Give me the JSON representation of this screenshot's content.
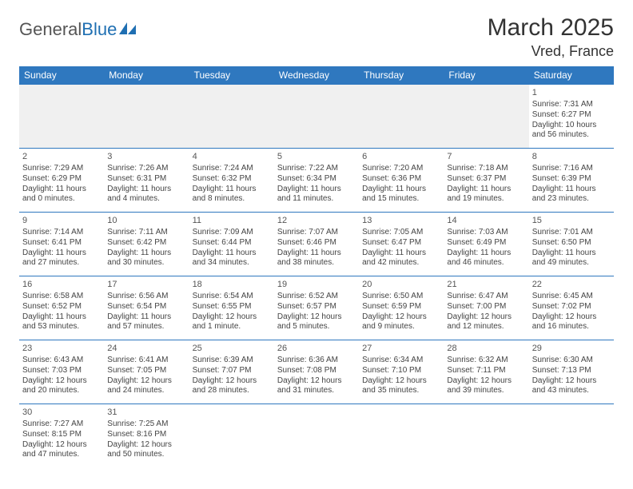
{
  "logo": {
    "part1": "General",
    "part2": "Blue"
  },
  "title": "March 2025",
  "location": "Vred, France",
  "weekdays": [
    "Sunday",
    "Monday",
    "Tuesday",
    "Wednesday",
    "Thursday",
    "Friday",
    "Saturday"
  ],
  "colors": {
    "header_bg": "#2f78bf",
    "header_text": "#ffffff",
    "rule": "#2f78bf",
    "blank_bg": "#f0f0f0",
    "logo_blue": "#1f6fb2"
  },
  "leading_blanks": 6,
  "days": [
    {
      "n": 1,
      "sunrise": "7:31 AM",
      "sunset": "6:27 PM",
      "daylight": "10 hours and 56 minutes."
    },
    {
      "n": 2,
      "sunrise": "7:29 AM",
      "sunset": "6:29 PM",
      "daylight": "11 hours and 0 minutes."
    },
    {
      "n": 3,
      "sunrise": "7:26 AM",
      "sunset": "6:31 PM",
      "daylight": "11 hours and 4 minutes."
    },
    {
      "n": 4,
      "sunrise": "7:24 AM",
      "sunset": "6:32 PM",
      "daylight": "11 hours and 8 minutes."
    },
    {
      "n": 5,
      "sunrise": "7:22 AM",
      "sunset": "6:34 PM",
      "daylight": "11 hours and 11 minutes."
    },
    {
      "n": 6,
      "sunrise": "7:20 AM",
      "sunset": "6:36 PM",
      "daylight": "11 hours and 15 minutes."
    },
    {
      "n": 7,
      "sunrise": "7:18 AM",
      "sunset": "6:37 PM",
      "daylight": "11 hours and 19 minutes."
    },
    {
      "n": 8,
      "sunrise": "7:16 AM",
      "sunset": "6:39 PM",
      "daylight": "11 hours and 23 minutes."
    },
    {
      "n": 9,
      "sunrise": "7:14 AM",
      "sunset": "6:41 PM",
      "daylight": "11 hours and 27 minutes."
    },
    {
      "n": 10,
      "sunrise": "7:11 AM",
      "sunset": "6:42 PM",
      "daylight": "11 hours and 30 minutes."
    },
    {
      "n": 11,
      "sunrise": "7:09 AM",
      "sunset": "6:44 PM",
      "daylight": "11 hours and 34 minutes."
    },
    {
      "n": 12,
      "sunrise": "7:07 AM",
      "sunset": "6:46 PM",
      "daylight": "11 hours and 38 minutes."
    },
    {
      "n": 13,
      "sunrise": "7:05 AM",
      "sunset": "6:47 PM",
      "daylight": "11 hours and 42 minutes."
    },
    {
      "n": 14,
      "sunrise": "7:03 AM",
      "sunset": "6:49 PM",
      "daylight": "11 hours and 46 minutes."
    },
    {
      "n": 15,
      "sunrise": "7:01 AM",
      "sunset": "6:50 PM",
      "daylight": "11 hours and 49 minutes."
    },
    {
      "n": 16,
      "sunrise": "6:58 AM",
      "sunset": "6:52 PM",
      "daylight": "11 hours and 53 minutes."
    },
    {
      "n": 17,
      "sunrise": "6:56 AM",
      "sunset": "6:54 PM",
      "daylight": "11 hours and 57 minutes."
    },
    {
      "n": 18,
      "sunrise": "6:54 AM",
      "sunset": "6:55 PM",
      "daylight": "12 hours and 1 minute."
    },
    {
      "n": 19,
      "sunrise": "6:52 AM",
      "sunset": "6:57 PM",
      "daylight": "12 hours and 5 minutes."
    },
    {
      "n": 20,
      "sunrise": "6:50 AM",
      "sunset": "6:59 PM",
      "daylight": "12 hours and 9 minutes."
    },
    {
      "n": 21,
      "sunrise": "6:47 AM",
      "sunset": "7:00 PM",
      "daylight": "12 hours and 12 minutes."
    },
    {
      "n": 22,
      "sunrise": "6:45 AM",
      "sunset": "7:02 PM",
      "daylight": "12 hours and 16 minutes."
    },
    {
      "n": 23,
      "sunrise": "6:43 AM",
      "sunset": "7:03 PM",
      "daylight": "12 hours and 20 minutes."
    },
    {
      "n": 24,
      "sunrise": "6:41 AM",
      "sunset": "7:05 PM",
      "daylight": "12 hours and 24 minutes."
    },
    {
      "n": 25,
      "sunrise": "6:39 AM",
      "sunset": "7:07 PM",
      "daylight": "12 hours and 28 minutes."
    },
    {
      "n": 26,
      "sunrise": "6:36 AM",
      "sunset": "7:08 PM",
      "daylight": "12 hours and 31 minutes."
    },
    {
      "n": 27,
      "sunrise": "6:34 AM",
      "sunset": "7:10 PM",
      "daylight": "12 hours and 35 minutes."
    },
    {
      "n": 28,
      "sunrise": "6:32 AM",
      "sunset": "7:11 PM",
      "daylight": "12 hours and 39 minutes."
    },
    {
      "n": 29,
      "sunrise": "6:30 AM",
      "sunset": "7:13 PM",
      "daylight": "12 hours and 43 minutes."
    },
    {
      "n": 30,
      "sunrise": "7:27 AM",
      "sunset": "8:15 PM",
      "daylight": "12 hours and 47 minutes."
    },
    {
      "n": 31,
      "sunrise": "7:25 AM",
      "sunset": "8:16 PM",
      "daylight": "12 hours and 50 minutes."
    }
  ],
  "labels": {
    "sunrise_prefix": "Sunrise: ",
    "sunset_prefix": "Sunset: ",
    "daylight_prefix": "Daylight: "
  }
}
